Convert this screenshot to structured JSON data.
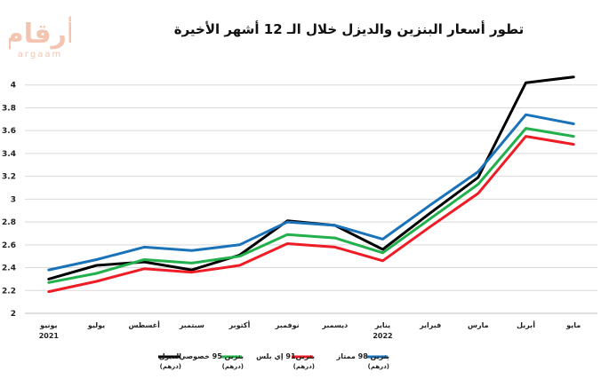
{
  "header": {
    "title": "تطور أسعار البنزين والديزل خلال الـ 12 أشهر الأخيرة",
    "logo_text": "أرقام",
    "logo_sub": "argaam"
  },
  "chart_data": {
    "type": "line",
    "categories": [
      "يونيو",
      "يوليو",
      "أغسطس",
      "سبتمبر",
      "أكتوبر",
      "نوفمبر",
      "ديسمبر",
      "يناير",
      "فبراير",
      "مارس",
      "أبريل",
      "مايو"
    ],
    "year_labels": [
      {
        "index": 0,
        "label": "2021"
      },
      {
        "index": 7,
        "label": "2022"
      }
    ],
    "ylim": [
      2,
      4.2
    ],
    "yticks": [
      2,
      2.2,
      2.4,
      2.6,
      2.8,
      3,
      3.2,
      3.4,
      3.6,
      3.8,
      4
    ],
    "grid": true,
    "legend_position": "bottom",
    "series": [
      {
        "name": "الديزل",
        "unit": "(درهم)",
        "color": "#000000",
        "values": [
          2.3,
          2.42,
          2.45,
          2.38,
          2.51,
          2.81,
          2.77,
          2.56,
          2.88,
          3.19,
          4.02,
          4.07
        ]
      },
      {
        "name": "بنزين 95 خصوصي",
        "unit": "(درهم)",
        "color": "#21b04b",
        "values": [
          2.27,
          2.35,
          2.47,
          2.44,
          2.5,
          2.69,
          2.66,
          2.53,
          2.83,
          3.13,
          3.62,
          3.55
        ]
      },
      {
        "name": "بنزين91 إي بلس",
        "unit": "(درهم)",
        "color": "#ee1c25",
        "values": [
          2.19,
          2.28,
          2.39,
          2.36,
          2.42,
          2.61,
          2.58,
          2.46,
          2.76,
          3.05,
          3.55,
          3.48
        ]
      },
      {
        "name": "بنزين 98 ممتاز",
        "unit": "(درهم)",
        "color": "#1a72b9",
        "values": [
          2.38,
          2.47,
          2.58,
          2.55,
          2.6,
          2.8,
          2.77,
          2.65,
          2.95,
          3.24,
          3.74,
          3.66
        ]
      }
    ]
  }
}
